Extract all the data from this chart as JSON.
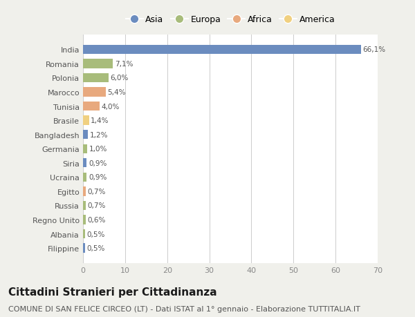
{
  "countries": [
    "India",
    "Romania",
    "Polonia",
    "Marocco",
    "Tunisia",
    "Brasile",
    "Bangladesh",
    "Germania",
    "Siria",
    "Ucraina",
    "Egitto",
    "Russia",
    "Regno Unito",
    "Albania",
    "Filippine"
  ],
  "values": [
    66.1,
    7.1,
    6.0,
    5.4,
    4.0,
    1.4,
    1.2,
    1.0,
    0.9,
    0.9,
    0.7,
    0.7,
    0.6,
    0.5,
    0.5
  ],
  "labels": [
    "66,1%",
    "7,1%",
    "6,0%",
    "5,4%",
    "4,0%",
    "1,4%",
    "1,2%",
    "1,0%",
    "0,9%",
    "0,9%",
    "0,7%",
    "0,7%",
    "0,6%",
    "0,5%",
    "0,5%"
  ],
  "continents": [
    "Asia",
    "Europa",
    "Europa",
    "Africa",
    "Africa",
    "America",
    "Asia",
    "Europa",
    "Asia",
    "Europa",
    "Africa",
    "Europa",
    "Europa",
    "Europa",
    "Asia"
  ],
  "continent_colors": {
    "Asia": "#6b8cbf",
    "Europa": "#a8bc7b",
    "Africa": "#e8a97e",
    "America": "#f0d080"
  },
  "legend_order": [
    "Asia",
    "Europa",
    "Africa",
    "America"
  ],
  "xlim": [
    0,
    70
  ],
  "xticks": [
    0,
    10,
    20,
    30,
    40,
    50,
    60,
    70
  ],
  "title": "Cittadini Stranieri per Cittadinanza",
  "subtitle": "COMUNE DI SAN FELICE CIRCEO (LT) - Dati ISTAT al 1° gennaio - Elaborazione TUTTITALIA.IT",
  "bg_color": "#f0f0eb",
  "bar_bg_color": "#ffffff",
  "grid_color": "#cccccc",
  "title_fontsize": 11,
  "subtitle_fontsize": 8,
  "label_fontsize": 7.5,
  "tick_fontsize": 8,
  "legend_fontsize": 9
}
